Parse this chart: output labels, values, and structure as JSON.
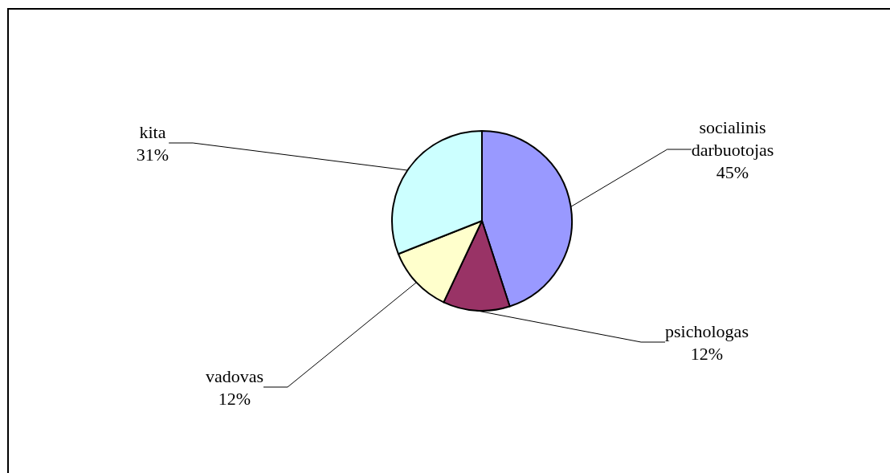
{
  "chart_data": {
    "type": "pie",
    "categories": [
      "socialinis darbuotojas",
      "psichologas",
      "vadovas",
      "kita"
    ],
    "values": [
      45,
      12,
      12,
      31
    ],
    "colors": [
      "#9999ff",
      "#993366",
      "#ffffcc",
      "#ccffff"
    ],
    "value_labels": [
      "45%",
      "12%",
      "12%",
      "31%"
    ]
  }
}
